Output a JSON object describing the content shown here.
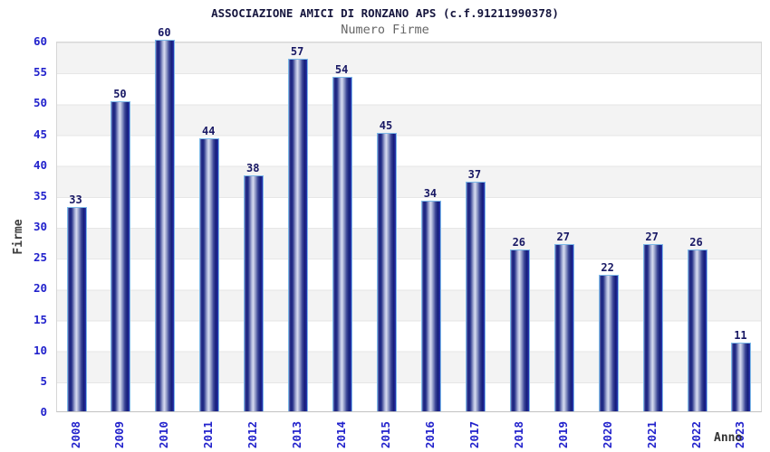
{
  "chart_data": {
    "type": "bar",
    "title": "ASSOCIAZIONE AMICI DI RONZANO APS (c.f.91211990378)",
    "subtitle": "Numero Firme",
    "categories": [
      "2008",
      "2009",
      "2010",
      "2011",
      "2012",
      "2013",
      "2014",
      "2015",
      "2016",
      "2017",
      "2018",
      "2019",
      "2020",
      "2021",
      "2022",
      "2023"
    ],
    "values": [
      33,
      50,
      60,
      44,
      38,
      57,
      54,
      45,
      34,
      37,
      26,
      27,
      22,
      27,
      26,
      11
    ],
    "xlabel": "Anno",
    "ylabel": "Firme",
    "ylim": [
      0,
      60
    ],
    "yticks": [
      0,
      5,
      10,
      15,
      20,
      25,
      30,
      35,
      40,
      45,
      50,
      55,
      60
    ],
    "grid": "horizontal alternating bands every 5 units",
    "legend": "none",
    "colors": {
      "bar_dark": "#1a2280",
      "bar_highlight": "#d9ddf1",
      "bar_border": "#7db9e8",
      "value_label": "#181864",
      "tick_label": "#2222cc",
      "title": "#16163e",
      "subtitle": "#666666",
      "band_gray": "#f3f3f3",
      "band_white": "#ffffff",
      "gridline": "#e6e6e6"
    }
  }
}
